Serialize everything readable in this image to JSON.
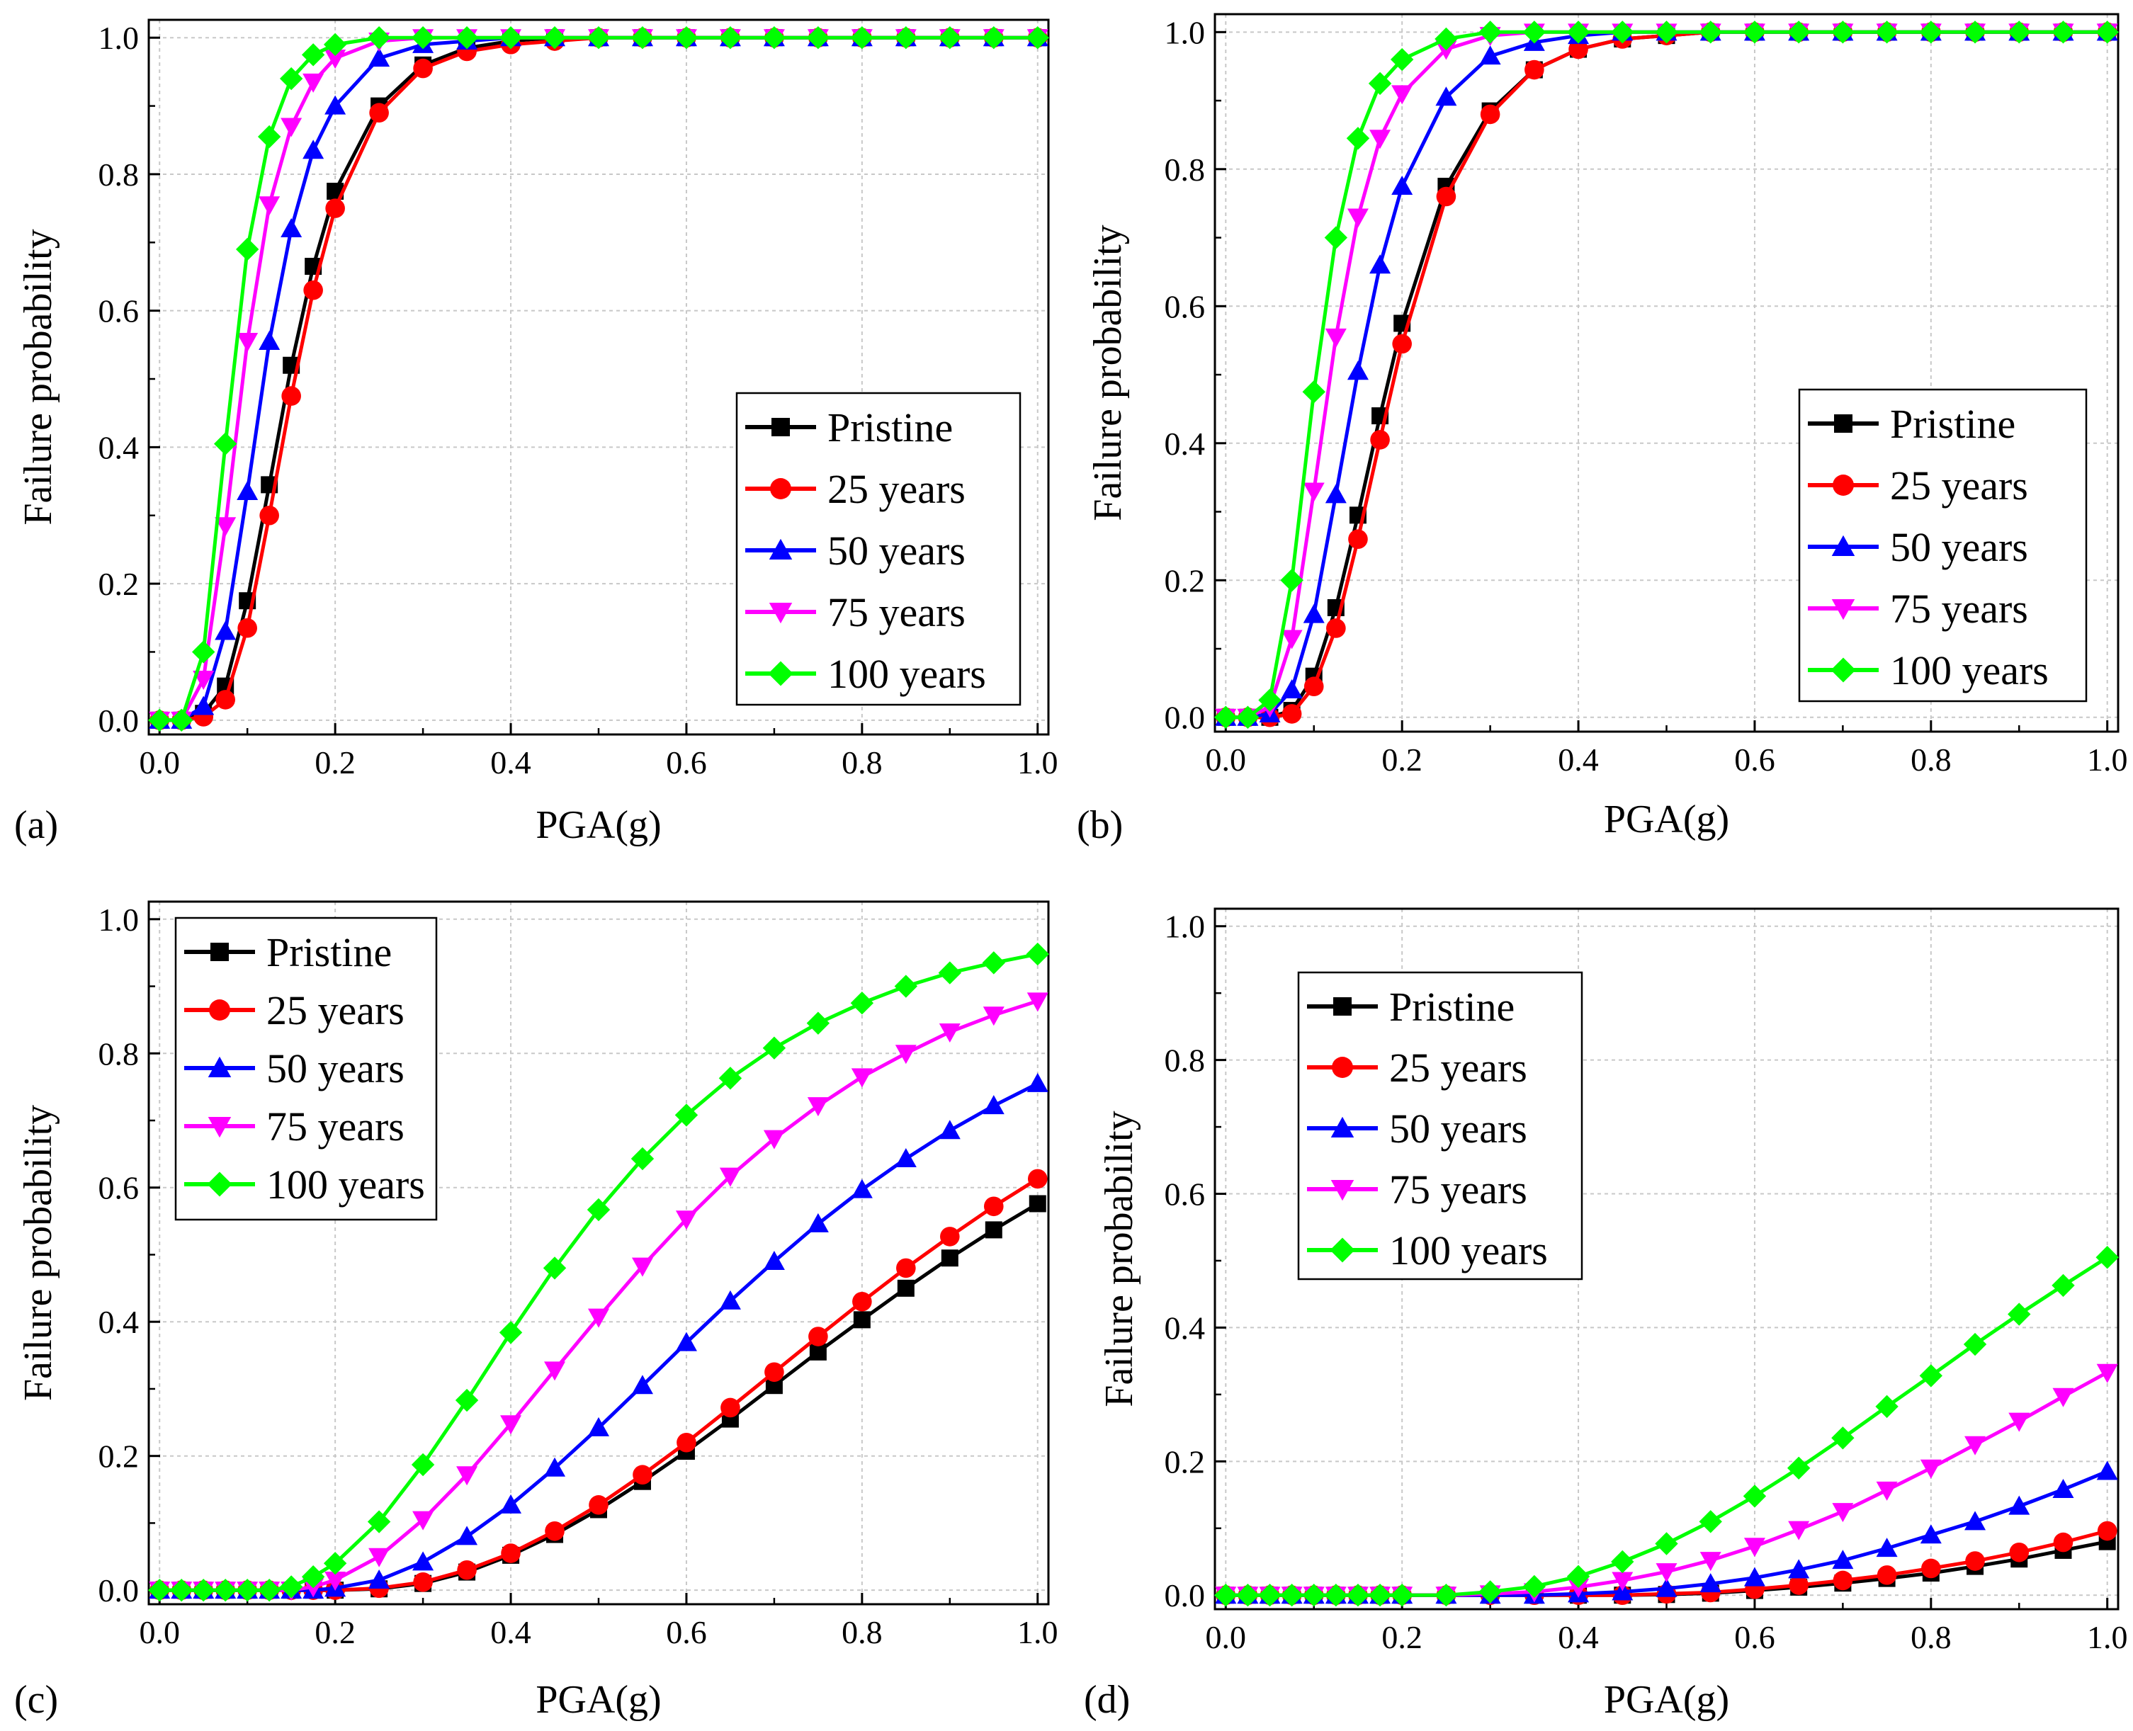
{
  "figure": {
    "panel_labels": [
      "(a)",
      "(b)",
      "(c)",
      "(d)"
    ],
    "colors": {
      "Pristine": "#000000",
      "25 years": "#ff0000",
      "50 years": "#0000ff",
      "75 years": "#ff00ff",
      "100 years": "#00ff00",
      "grid": "#c8c8c8"
    },
    "markers": {
      "Pristine": "square",
      "25 years": "circle",
      "50 years": "triangle-up",
      "75 years": "triangle-down",
      "100 years": "diamond"
    }
  },
  "chart_data": [
    {
      "type": "line",
      "panel": "(a)",
      "xlabel": "PGA(g)",
      "ylabel": "Failure probability",
      "xlim": [
        0.0,
        1.0
      ],
      "ylim": [
        0.0,
        1.0
      ],
      "xticks": [
        "0.0",
        "0.2",
        "0.4",
        "0.6",
        "0.8",
        "1.0"
      ],
      "yticks": [
        "0.0",
        "0.2",
        "0.4",
        "0.6",
        "0.8",
        "1.0"
      ],
      "grid": true,
      "legend_position": "right",
      "x": [
        0.0,
        0.025,
        0.05,
        0.075,
        0.1,
        0.125,
        0.15,
        0.175,
        0.2,
        0.25,
        0.3,
        0.35,
        0.4,
        0.45,
        0.5,
        0.55,
        0.6,
        0.65,
        0.7,
        0.75,
        0.8,
        0.85,
        0.9,
        0.95,
        1.0
      ],
      "series": [
        {
          "name": "Pristine",
          "values": [
            0.0,
            0.0,
            0.01,
            0.05,
            0.175,
            0.345,
            0.52,
            0.665,
            0.775,
            0.9,
            0.96,
            0.985,
            0.995,
            1.0,
            1.0,
            1.0,
            1.0,
            1.0,
            1.0,
            1.0,
            1.0,
            1.0,
            1.0,
            1.0,
            1.0
          ]
        },
        {
          "name": "25 years",
          "values": [
            0.0,
            0.0,
            0.005,
            0.03,
            0.135,
            0.3,
            0.475,
            0.63,
            0.75,
            0.89,
            0.955,
            0.98,
            0.99,
            0.995,
            1.0,
            1.0,
            1.0,
            1.0,
            1.0,
            1.0,
            1.0,
            1.0,
            1.0,
            1.0,
            1.0
          ]
        },
        {
          "name": "50 years",
          "values": [
            0.0,
            0.0,
            0.02,
            0.13,
            0.335,
            0.555,
            0.72,
            0.835,
            0.9,
            0.97,
            0.99,
            0.995,
            1.0,
            1.0,
            1.0,
            1.0,
            1.0,
            1.0,
            1.0,
            1.0,
            1.0,
            1.0,
            1.0,
            1.0,
            1.0
          ]
        },
        {
          "name": "75 years",
          "values": [
            0.0,
            0.0,
            0.06,
            0.285,
            0.555,
            0.755,
            0.87,
            0.935,
            0.97,
            0.995,
            1.0,
            1.0,
            1.0,
            1.0,
            1.0,
            1.0,
            1.0,
            1.0,
            1.0,
            1.0,
            1.0,
            1.0,
            1.0,
            1.0,
            1.0
          ]
        },
        {
          "name": "100 years",
          "values": [
            0.0,
            0.0,
            0.1,
            0.405,
            0.69,
            0.855,
            0.94,
            0.975,
            0.99,
            1.0,
            1.0,
            1.0,
            1.0,
            1.0,
            1.0,
            1.0,
            1.0,
            1.0,
            1.0,
            1.0,
            1.0,
            1.0,
            1.0,
            1.0,
            1.0
          ]
        }
      ]
    },
    {
      "type": "line",
      "panel": "(b)",
      "xlabel": "PGA(g)",
      "ylabel": "Failure probability",
      "xlim": [
        0.0,
        1.0
      ],
      "ylim": [
        0.0,
        1.0
      ],
      "xticks": [
        "0.0",
        "0.2",
        "0.4",
        "0.6",
        "0.8",
        "1.0"
      ],
      "yticks": [
        "0.0",
        "0.2",
        "0.4",
        "0.6",
        "0.8",
        "1.0"
      ],
      "grid": true,
      "legend_position": "right",
      "x": [
        0.0,
        0.025,
        0.05,
        0.075,
        0.1,
        0.125,
        0.15,
        0.175,
        0.2,
        0.25,
        0.3,
        0.35,
        0.4,
        0.45,
        0.5,
        0.55,
        0.6,
        0.65,
        0.7,
        0.75,
        0.8,
        0.85,
        0.9,
        0.95,
        1.0
      ],
      "series": [
        {
          "name": "Pristine",
          "values": [
            0.0,
            0.0,
            0.0,
            0.01,
            0.06,
            0.16,
            0.295,
            0.44,
            0.575,
            0.775,
            0.885,
            0.945,
            0.975,
            0.99,
            0.995,
            1.0,
            1.0,
            1.0,
            1.0,
            1.0,
            1.0,
            1.0,
            1.0,
            1.0,
            1.0
          ]
        },
        {
          "name": "25 years",
          "values": [
            0.0,
            0.0,
            0.0,
            0.005,
            0.045,
            0.13,
            0.26,
            0.405,
            0.545,
            0.76,
            0.88,
            0.945,
            0.975,
            0.99,
            0.995,
            1.0,
            1.0,
            1.0,
            1.0,
            1.0,
            1.0,
            1.0,
            1.0,
            1.0,
            1.0
          ]
        },
        {
          "name": "50 years",
          "values": [
            0.0,
            0.0,
            0.005,
            0.04,
            0.15,
            0.325,
            0.505,
            0.66,
            0.775,
            0.905,
            0.965,
            0.985,
            0.995,
            1.0,
            1.0,
            1.0,
            1.0,
            1.0,
            1.0,
            1.0,
            1.0,
            1.0,
            1.0,
            1.0,
            1.0
          ]
        },
        {
          "name": "75 years",
          "values": [
            0.0,
            0.0,
            0.015,
            0.115,
            0.33,
            0.555,
            0.73,
            0.845,
            0.91,
            0.975,
            0.995,
            1.0,
            1.0,
            1.0,
            1.0,
            1.0,
            1.0,
            1.0,
            1.0,
            1.0,
            1.0,
            1.0,
            1.0,
            1.0,
            1.0
          ]
        },
        {
          "name": "100 years",
          "values": [
            0.0,
            0.0,
            0.025,
            0.2,
            0.475,
            0.7,
            0.845,
            0.925,
            0.96,
            0.99,
            1.0,
            1.0,
            1.0,
            1.0,
            1.0,
            1.0,
            1.0,
            1.0,
            1.0,
            1.0,
            1.0,
            1.0,
            1.0,
            1.0,
            1.0
          ]
        }
      ]
    },
    {
      "type": "line",
      "panel": "(c)",
      "xlabel": "PGA(g)",
      "ylabel": "Failure probability",
      "xlim": [
        0.0,
        1.0
      ],
      "ylim": [
        0.0,
        1.0
      ],
      "xticks": [
        "0.0",
        "0.2",
        "0.4",
        "0.6",
        "0.8",
        "1.0"
      ],
      "yticks": [
        "0.0",
        "0.2",
        "0.4",
        "0.6",
        "0.8",
        "1.0"
      ],
      "grid": true,
      "legend_position": "top-left",
      "x": [
        0.0,
        0.025,
        0.05,
        0.075,
        0.1,
        0.125,
        0.15,
        0.175,
        0.2,
        0.25,
        0.3,
        0.35,
        0.4,
        0.45,
        0.5,
        0.55,
        0.6,
        0.65,
        0.7,
        0.75,
        0.8,
        0.85,
        0.9,
        0.95,
        1.0
      ],
      "series": [
        {
          "name": "Pristine",
          "values": [
            0.0,
            0.0,
            0.0,
            0.0,
            0.0,
            0.0,
            0.0,
            0.0,
            0.0,
            0.002,
            0.01,
            0.027,
            0.052,
            0.083,
            0.12,
            0.162,
            0.207,
            0.255,
            0.305,
            0.355,
            0.403,
            0.45,
            0.495,
            0.537,
            0.576
          ]
        },
        {
          "name": "25 years",
          "values": [
            0.0,
            0.0,
            0.0,
            0.0,
            0.0,
            0.0,
            0.0,
            0.0,
            0.0,
            0.003,
            0.012,
            0.03,
            0.055,
            0.088,
            0.127,
            0.172,
            0.22,
            0.272,
            0.325,
            0.378,
            0.43,
            0.48,
            0.527,
            0.572,
            0.613
          ]
        },
        {
          "name": "50 years",
          "values": [
            0.0,
            0.0,
            0.0,
            0.0,
            0.0,
            0.0,
            0.0,
            0.0,
            0.003,
            0.015,
            0.042,
            0.08,
            0.127,
            0.182,
            0.242,
            0.305,
            0.369,
            0.431,
            0.49,
            0.546,
            0.597,
            0.643,
            0.685,
            0.722,
            0.755
          ]
        },
        {
          "name": "75 years",
          "values": [
            0.0,
            0.0,
            0.0,
            0.0,
            0.0,
            0.0,
            0.0,
            0.005,
            0.015,
            0.05,
            0.105,
            0.172,
            0.248,
            0.328,
            0.407,
            0.483,
            0.553,
            0.617,
            0.673,
            0.722,
            0.765,
            0.8,
            0.832,
            0.857,
            0.878
          ]
        },
        {
          "name": "100 years",
          "values": [
            0.0,
            0.0,
            0.0,
            0.0,
            0.0,
            0.0,
            0.005,
            0.02,
            0.04,
            0.102,
            0.187,
            0.283,
            0.384,
            0.48,
            0.567,
            0.643,
            0.708,
            0.763,
            0.808,
            0.845,
            0.875,
            0.9,
            0.92,
            0.935,
            0.948
          ]
        }
      ]
    },
    {
      "type": "line",
      "panel": "(d)",
      "xlabel": "PGA(g)",
      "ylabel": "Failure probability",
      "xlim": [
        0.0,
        1.0
      ],
      "ylim": [
        0.0,
        1.0
      ],
      "xticks": [
        "0.0",
        "0.2",
        "0.4",
        "0.6",
        "0.8",
        "1.0"
      ],
      "yticks": [
        "0.0",
        "0.2",
        "0.4",
        "0.6",
        "0.8",
        "1.0"
      ],
      "grid": true,
      "legend_position": "top-left",
      "x": [
        0.0,
        0.025,
        0.05,
        0.075,
        0.1,
        0.125,
        0.15,
        0.175,
        0.2,
        0.25,
        0.3,
        0.35,
        0.4,
        0.45,
        0.5,
        0.55,
        0.6,
        0.65,
        0.7,
        0.75,
        0.8,
        0.85,
        0.9,
        0.95,
        1.0
      ],
      "series": [
        {
          "name": "Pristine",
          "values": [
            0.0,
            0.0,
            0.0,
            0.0,
            0.0,
            0.0,
            0.0,
            0.0,
            0.0,
            0.0,
            0.0,
            0.0,
            0.0,
            0.0,
            0.001,
            0.003,
            0.007,
            0.012,
            0.018,
            0.025,
            0.033,
            0.043,
            0.054,
            0.067,
            0.08
          ]
        },
        {
          "name": "25 years",
          "values": [
            0.0,
            0.0,
            0.0,
            0.0,
            0.0,
            0.0,
            0.0,
            0.0,
            0.0,
            0.0,
            0.0,
            0.0,
            0.0,
            0.0,
            0.002,
            0.004,
            0.009,
            0.015,
            0.022,
            0.03,
            0.04,
            0.051,
            0.064,
            0.079,
            0.096
          ]
        },
        {
          "name": "50 years",
          "values": [
            0.0,
            0.0,
            0.0,
            0.0,
            0.0,
            0.0,
            0.0,
            0.0,
            0.0,
            0.0,
            0.0,
            0.0,
            0.002,
            0.005,
            0.01,
            0.017,
            0.026,
            0.038,
            0.052,
            0.07,
            0.09,
            0.11,
            0.133,
            0.158,
            0.185
          ]
        },
        {
          "name": "75 years",
          "values": [
            0.0,
            0.0,
            0.0,
            0.0,
            0.0,
            0.0,
            0.0,
            0.0,
            0.0,
            0.0,
            0.002,
            0.005,
            0.012,
            0.022,
            0.035,
            0.052,
            0.073,
            0.098,
            0.125,
            0.157,
            0.19,
            0.225,
            0.26,
            0.297,
            0.333
          ]
        },
        {
          "name": "100 years",
          "values": [
            0.0,
            0.0,
            0.0,
            0.0,
            0.0,
            0.0,
            0.0,
            0.0,
            0.0,
            0.0,
            0.005,
            0.013,
            0.028,
            0.05,
            0.077,
            0.11,
            0.148,
            0.19,
            0.235,
            0.282,
            0.328,
            0.375,
            0.42,
            0.463,
            0.505
          ]
        }
      ]
    }
  ]
}
